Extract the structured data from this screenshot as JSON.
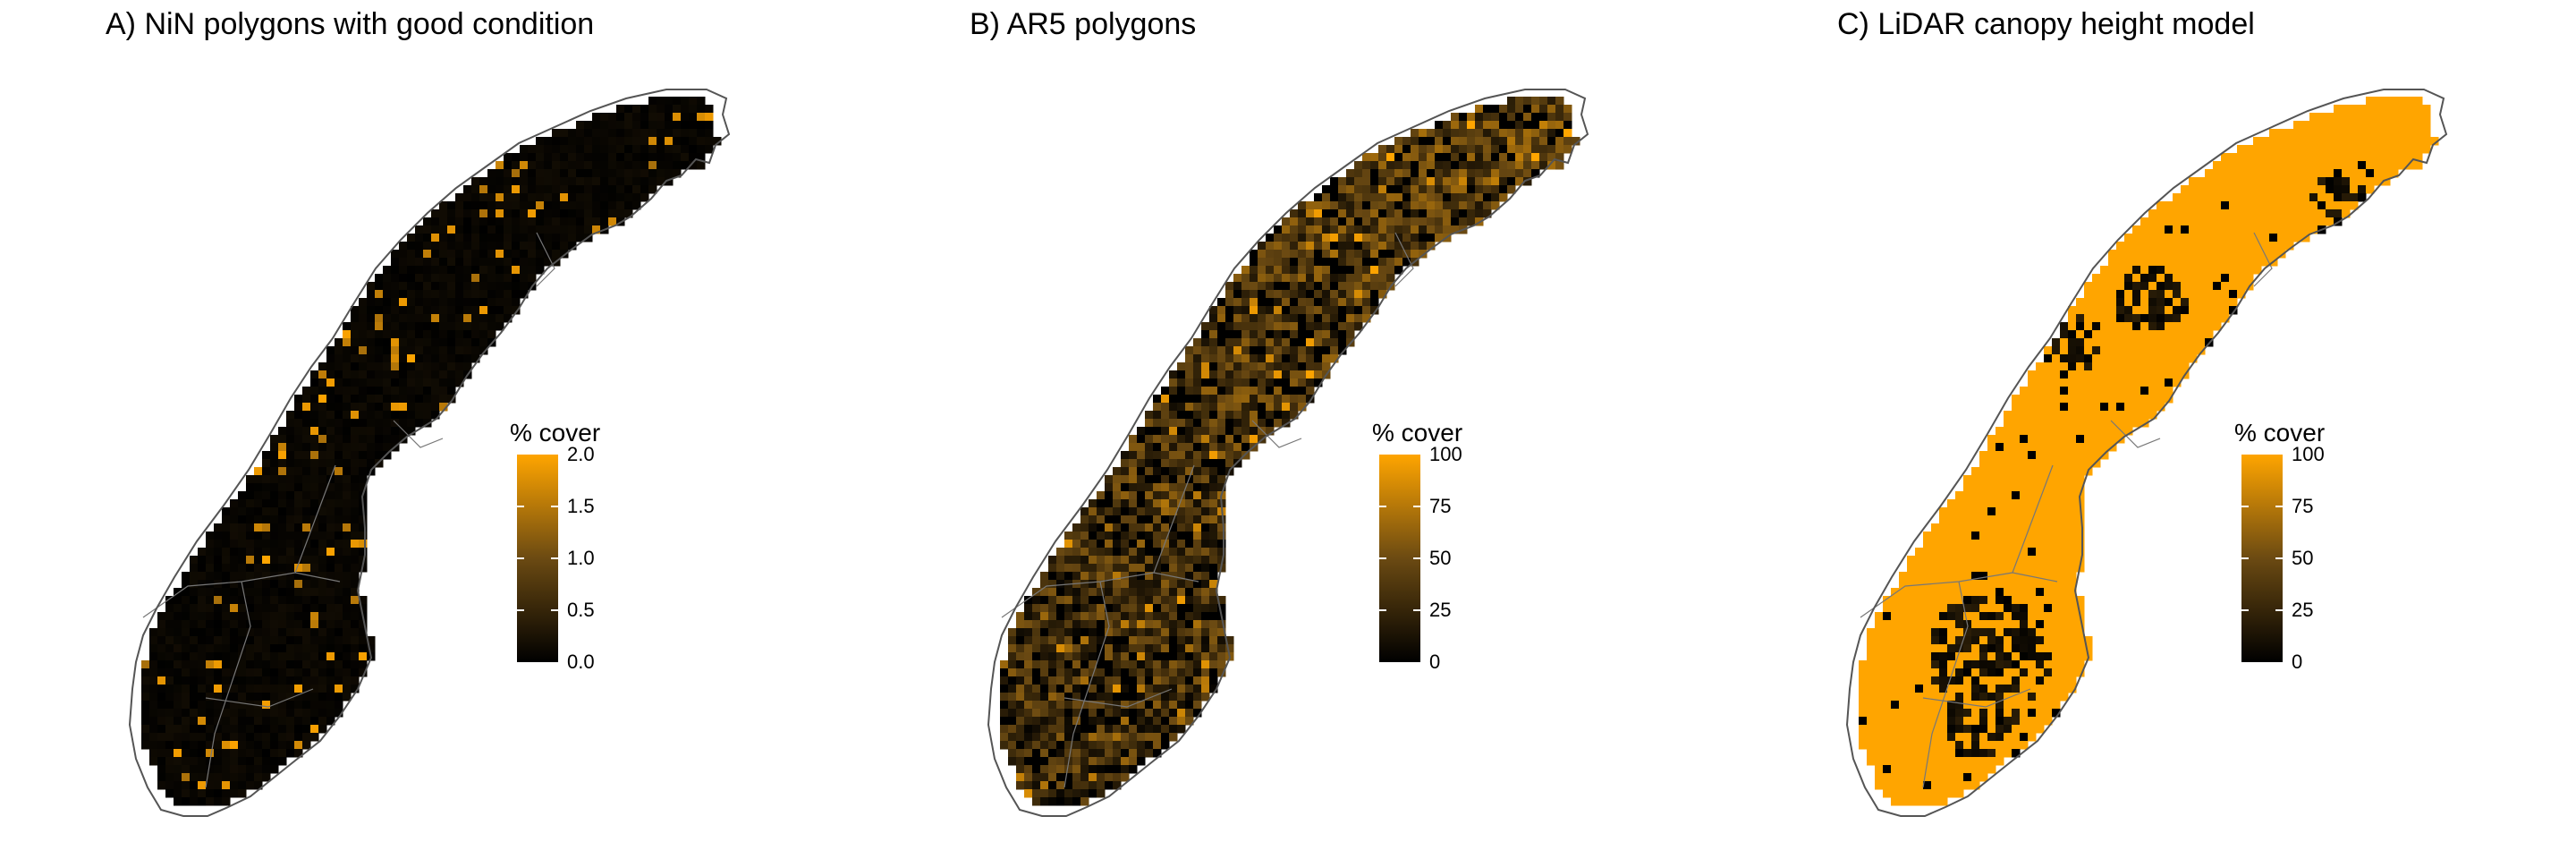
{
  "panels": [
    {
      "id": "A",
      "title": "A) NiN polygons with good condition",
      "legend": {
        "title": "% cover",
        "ticks": [
          "2.0",
          "1.5",
          "1.0",
          "0.5",
          "0.0"
        ]
      },
      "fill_density": 0.05
    },
    {
      "id": "B",
      "title": "B) AR5 polygons",
      "legend": {
        "title": "% cover",
        "ticks": [
          "100",
          "75",
          "50",
          "25",
          "0"
        ]
      },
      "fill_density": 0.45
    },
    {
      "id": "C",
      "title": "C) LiDAR canopy height model",
      "legend": {
        "title": "% cover",
        "ticks": [
          "100",
          "75",
          "50",
          "25",
          "0"
        ]
      },
      "fill_density": 0.9
    }
  ],
  "colors": {
    "low": "#000000",
    "mid": "#6b4a12",
    "high": "#ffa500",
    "outline": "#555555"
  }
}
